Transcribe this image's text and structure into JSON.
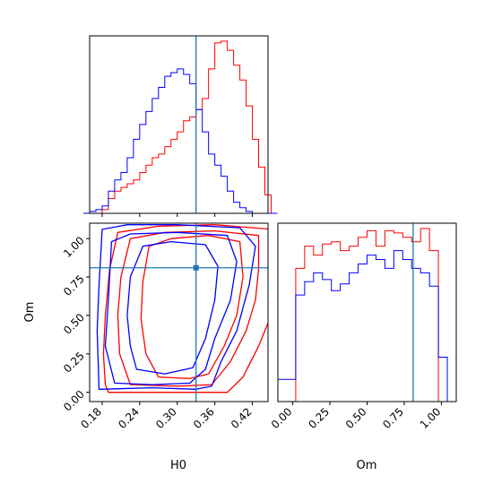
{
  "chart_data": {
    "type": "corner",
    "parameters": [
      "H0",
      "Om"
    ],
    "truth": {
      "H0": 0.33,
      "Om": 0.81
    },
    "colors": {
      "red": "#ff0000",
      "blue": "#0000ff",
      "truth": "#1f77b4"
    },
    "hist_H0": {
      "bins": [
        0.15,
        0.16,
        0.17,
        0.18,
        0.19,
        0.2,
        0.21,
        0.22,
        0.23,
        0.24,
        0.25,
        0.26,
        0.27,
        0.28,
        0.29,
        0.3,
        0.31,
        0.32,
        0.33,
        0.34,
        0.35,
        0.36,
        0.37,
        0.38,
        0.39,
        0.4,
        0.41,
        0.42,
        0.43,
        0.44,
        0.45,
        0.46
      ],
      "series": [
        {
          "color": "#ff0000",
          "counts": [
            0,
            0,
            0,
            2,
            8,
            12,
            14,
            16,
            18,
            22,
            26,
            30,
            32,
            36,
            40,
            44,
            50,
            52,
            56,
            62,
            78,
            92,
            93,
            88,
            80,
            72,
            58,
            40,
            25,
            10,
            0
          ]
        },
        {
          "color": "#0000ff",
          "counts": [
            0,
            1,
            2,
            4,
            12,
            18,
            22,
            30,
            40,
            48,
            55,
            62,
            68,
            74,
            76,
            78,
            75,
            70,
            56,
            44,
            32,
            26,
            20,
            12,
            6,
            3,
            1,
            0,
            0,
            0,
            0
          ]
        }
      ]
    },
    "hist_Om": {
      "bins": [
        -0.1,
        -0.04,
        0.02,
        0.08,
        0.14,
        0.2,
        0.26,
        0.32,
        0.38,
        0.44,
        0.5,
        0.56,
        0.62,
        0.68,
        0.74,
        0.8,
        0.86,
        0.92,
        0.98,
        1.04,
        1.1
      ],
      "series": [
        {
          "color": "#ff0000",
          "counts": [
            0,
            0,
            60,
            70,
            66,
            71,
            72,
            68,
            70,
            74,
            77,
            70,
            77,
            76,
            74,
            72,
            78,
            68,
            0,
            0
          ]
        },
        {
          "color": "#0000ff",
          "counts": [
            10,
            10,
            48,
            54,
            58,
            55,
            50,
            53,
            58,
            62,
            66,
            64,
            60,
            68,
            64,
            60,
            58,
            52,
            20,
            0
          ]
        }
      ]
    },
    "contours": [
      {
        "color": "#ff0000",
        "levels": [
          [
            [
              0.19,
              0.0
            ],
            [
              0.3,
              0.0
            ],
            [
              0.38,
              0.0
            ],
            [
              0.405,
              0.1
            ],
            [
              0.43,
              0.3
            ],
            [
              0.45,
              0.5
            ],
            [
              0.452,
              0.8
            ],
            [
              0.452,
              1.06
            ],
            [
              0.36,
              1.09
            ],
            [
              0.27,
              1.08
            ],
            [
              0.205,
              1.04
            ],
            [
              0.192,
              0.8
            ],
            [
              0.185,
              0.5
            ],
            [
              0.182,
              0.25
            ],
            [
              0.185,
              0.05
            ],
            [
              0.19,
              0.0
            ]
          ],
          [
            [
              0.225,
              0.05
            ],
            [
              0.3,
              0.04
            ],
            [
              0.355,
              0.05
            ],
            [
              0.385,
              0.2
            ],
            [
              0.41,
              0.4
            ],
            [
              0.425,
              0.6
            ],
            [
              0.43,
              0.8
            ],
            [
              0.43,
              1.02
            ],
            [
              0.36,
              1.05
            ],
            [
              0.28,
              1.04
            ],
            [
              0.225,
              1.0
            ],
            [
              0.21,
              0.75
            ],
            [
              0.205,
              0.5
            ],
            [
              0.208,
              0.25
            ],
            [
              0.225,
              0.05
            ]
          ],
          [
            [
              0.27,
              0.1
            ],
            [
              0.32,
              0.09
            ],
            [
              0.35,
              0.12
            ],
            [
              0.375,
              0.3
            ],
            [
              0.395,
              0.5
            ],
            [
              0.405,
              0.75
            ],
            [
              0.4,
              0.98
            ],
            [
              0.35,
              1.02
            ],
            [
              0.29,
              1.0
            ],
            [
              0.255,
              0.95
            ],
            [
              0.245,
              0.72
            ],
            [
              0.242,
              0.48
            ],
            [
              0.25,
              0.25
            ],
            [
              0.27,
              0.1
            ]
          ]
        ]
      },
      {
        "color": "#0000ff",
        "levels": [
          [
            [
              0.175,
              0.02
            ],
            [
              0.26,
              0.03
            ],
            [
              0.33,
              0.02
            ],
            [
              0.355,
              0.04
            ],
            [
              0.37,
              0.2
            ],
            [
              0.395,
              0.4
            ],
            [
              0.415,
              0.7
            ],
            [
              0.425,
              0.95
            ],
            [
              0.4,
              1.07
            ],
            [
              0.3,
              1.09
            ],
            [
              0.22,
              1.09
            ],
            [
              0.18,
              1.06
            ],
            [
              0.175,
              0.7
            ],
            [
              0.172,
              0.4
            ],
            [
              0.175,
              0.02
            ]
          ],
          [
            [
              0.2,
              0.06
            ],
            [
              0.26,
              0.05
            ],
            [
              0.32,
              0.06
            ],
            [
              0.345,
              0.15
            ],
            [
              0.36,
              0.35
            ],
            [
              0.385,
              0.6
            ],
            [
              0.395,
              0.85
            ],
            [
              0.38,
              1.02
            ],
            [
              0.3,
              1.04
            ],
            [
              0.225,
              1.03
            ],
            [
              0.195,
              0.98
            ],
            [
              0.19,
              0.6
            ],
            [
              0.185,
              0.3
            ],
            [
              0.2,
              0.06
            ]
          ],
          [
            [
              0.235,
              0.15
            ],
            [
              0.28,
              0.12
            ],
            [
              0.325,
              0.16
            ],
            [
              0.345,
              0.35
            ],
            [
              0.36,
              0.6
            ],
            [
              0.365,
              0.82
            ],
            [
              0.345,
              0.96
            ],
            [
              0.29,
              0.98
            ],
            [
              0.245,
              0.95
            ],
            [
              0.225,
              0.75
            ],
            [
              0.22,
              0.5
            ],
            [
              0.225,
              0.3
            ],
            [
              0.235,
              0.15
            ]
          ]
        ]
      }
    ],
    "axes": {
      "H0": {
        "label": "H0",
        "lim": [
          0.16,
          0.445
        ],
        "ticks": [
          0.18,
          0.24,
          0.3,
          0.36,
          0.42
        ],
        "tick_labels": [
          "0.18",
          "0.24",
          "0.30",
          "0.36",
          "0.42"
        ]
      },
      "Om": {
        "label": "Om",
        "lim": [
          -0.06,
          1.1
        ],
        "ticks": [
          0.0,
          0.25,
          0.5,
          0.75,
          1.0
        ],
        "tick_labels": [
          "0.00",
          "0.25",
          "0.50",
          "0.75",
          "1.00"
        ]
      },
      "Om_hist_x": {
        "lim": [
          -0.1,
          1.1
        ],
        "ticks": [
          0.0,
          0.25,
          0.5,
          0.75,
          1.0
        ],
        "tick_labels": [
          "0.00",
          "0.25",
          "0.50",
          "0.75",
          "1.00"
        ]
      }
    }
  }
}
